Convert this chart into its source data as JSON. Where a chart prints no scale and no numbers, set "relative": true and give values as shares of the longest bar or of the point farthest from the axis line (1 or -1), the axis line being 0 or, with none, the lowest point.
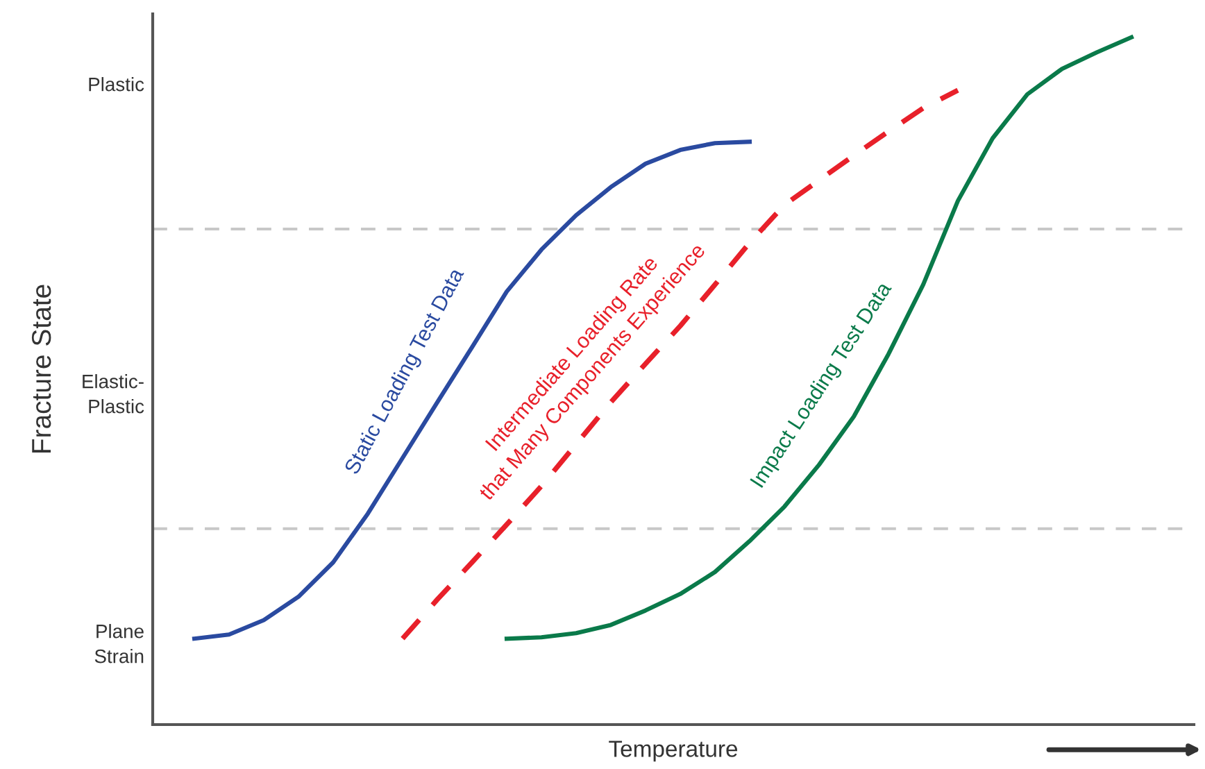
{
  "chart_data": {
    "type": "line",
    "relative": true,
    "xlabel": "Temperature",
    "ylabel": "Fracture State",
    "marker": "none",
    "categories": [
      null,
      null,
      null,
      null,
      null,
      null,
      null,
      null,
      null,
      null,
      null,
      null,
      null,
      null,
      null,
      null,
      null,
      null,
      null,
      null,
      null,
      null,
      null,
      null,
      null,
      null,
      null,
      null
    ],
    "series": [
      {
        "color": "#2a4aa0",
        "line_style": "solid",
        "values": [
          0.125,
          0.131,
          0.152,
          0.186,
          0.236,
          0.307,
          0.388,
          0.469,
          0.549,
          0.63,
          0.691,
          0.741,
          0.782,
          0.816,
          0.836,
          0.846,
          0.848,
          null,
          null,
          null,
          null,
          null,
          null,
          null,
          null,
          null,
          null,
          null
        ]
      },
      {
        "color": "#e8202a",
        "line_style": "dashed",
        "values": [
          null,
          null,
          null,
          null,
          null,
          null,
          0.125,
          0.182,
          0.236,
          0.291,
          0.347,
          0.408,
          0.469,
          0.525,
          0.58,
          0.64,
          0.701,
          0.756,
          0.792,
          0.828,
          0.863,
          0.897,
          0.923,
          null,
          null,
          null,
          null,
          null
        ]
      },
      {
        "color": "#0a7a4a",
        "line_style": "solid",
        "values": [
          null,
          null,
          null,
          null,
          null,
          null,
          null,
          null,
          null,
          0.125,
          0.127,
          0.133,
          0.145,
          0.166,
          0.19,
          0.222,
          0.267,
          0.317,
          0.378,
          0.448,
          0.539,
          0.64,
          0.762,
          0.853,
          0.917,
          0.954,
          0.978,
          1.0
        ]
      }
    ],
    "ref_lines": [
      {
        "axis": "y",
        "value": 0.721,
        "color": "#c8c8c8",
        "line_style": "dashed"
      },
      {
        "axis": "y",
        "value": 0.285,
        "color": "#c8c8c8",
        "line_style": "dashed"
      }
    ],
    "annotations": [
      "Plastic",
      "Elastic-\nPlastic",
      "Plane\nStrain",
      "Static Loading Test Data",
      "Intermediate Loading Rate\nthat Many Components Experience",
      "Impact Loading Test Data"
    ]
  }
}
